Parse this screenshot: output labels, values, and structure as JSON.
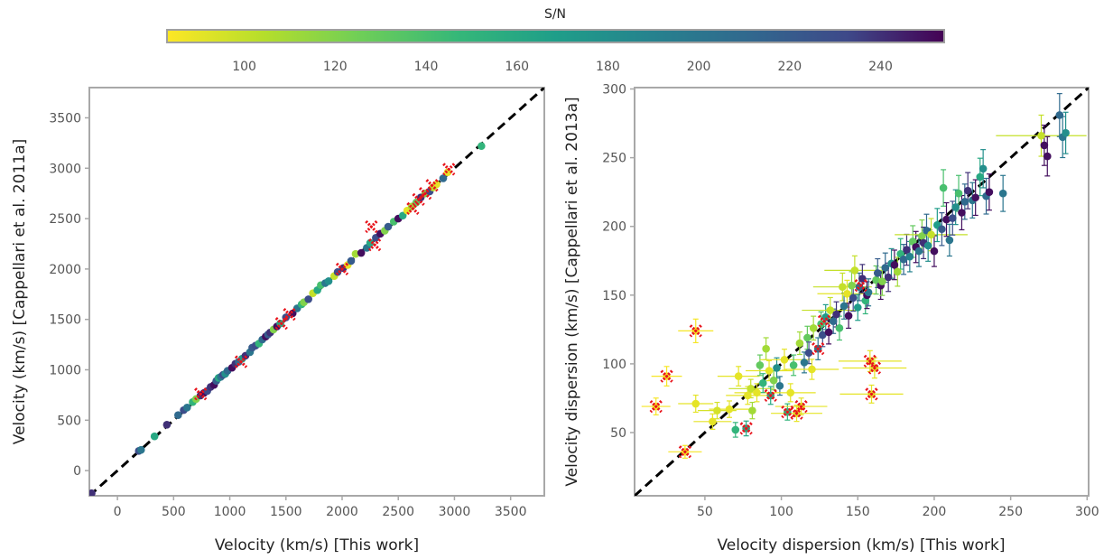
{
  "colorbar": {
    "label": "S/N",
    "ticks": [
      100,
      120,
      140,
      160,
      180,
      200,
      220,
      240
    ],
    "range": [
      83,
      254
    ]
  },
  "chart_data": [
    {
      "type": "scatter",
      "xlabel": "Velocity (km/s) [This work]",
      "ylabel": "Velocity (km/s) [Cappellari et al. 2011a]",
      "xlim": [
        -250,
        3800
      ],
      "ylim": [
        -250,
        3800
      ],
      "xticks": [
        0,
        500,
        1000,
        1500,
        2000,
        2500,
        3000,
        3500
      ],
      "yticks": [
        0,
        500,
        1000,
        1500,
        2000,
        2500,
        3000,
        3500
      ],
      "reference_line": "one-to-one",
      "points": [
        [
          -230,
          -225,
          240
        ],
        [
          190,
          195,
          230
        ],
        [
          210,
          205,
          200
        ],
        [
          330,
          340,
          160
        ],
        [
          440,
          455,
          240
        ],
        [
          540,
          550,
          210
        ],
        [
          590,
          600,
          230
        ],
        [
          620,
          625,
          200
        ],
        [
          670,
          680,
          150
        ],
        [
          700,
          710,
          120
        ],
        [
          740,
          745,
          240
        ],
        [
          770,
          770,
          250
        ],
        [
          800,
          790,
          230
        ],
        [
          830,
          830,
          240
        ],
        [
          860,
          850,
          250
        ],
        [
          880,
          890,
          220
        ],
        [
          900,
          920,
          160
        ],
        [
          920,
          930,
          200
        ],
        [
          940,
          950,
          230
        ],
        [
          960,
          960,
          180
        ],
        [
          980,
          990,
          210
        ],
        [
          1020,
          1020,
          250
        ],
        [
          1050,
          1060,
          240
        ],
        [
          1080,
          1080,
          210
        ],
        [
          1110,
          1110,
          170
        ],
        [
          1140,
          1140,
          240
        ],
        [
          1180,
          1175,
          200
        ],
        [
          1200,
          1220,
          220
        ],
        [
          1230,
          1240,
          230
        ],
        [
          1260,
          1260,
          150
        ],
        [
          1290,
          1300,
          210
        ],
        [
          1320,
          1330,
          250
        ],
        [
          1340,
          1350,
          220
        ],
        [
          1360,
          1370,
          240
        ],
        [
          1390,
          1400,
          120
        ],
        [
          1420,
          1430,
          250
        ],
        [
          1450,
          1460,
          160
        ],
        [
          1500,
          1520,
          230
        ],
        [
          1560,
          1560,
          250
        ],
        [
          1600,
          1610,
          200
        ],
        [
          1640,
          1650,
          150
        ],
        [
          1660,
          1670,
          120
        ],
        [
          1700,
          1700,
          230
        ],
        [
          1740,
          1760,
          100
        ],
        [
          1780,
          1790,
          160
        ],
        [
          1810,
          1840,
          140
        ],
        [
          1850,
          1860,
          200
        ],
        [
          1880,
          1880,
          180
        ],
        [
          1930,
          1930,
          100
        ],
        [
          1960,
          1970,
          230
        ],
        [
          2010,
          2010,
          240
        ],
        [
          2050,
          2040,
          90
        ],
        [
          2080,
          2080,
          220
        ],
        [
          2120,
          2150,
          110
        ],
        [
          2170,
          2160,
          250
        ],
        [
          2220,
          2210,
          200
        ],
        [
          2250,
          2260,
          160
        ],
        [
          2300,
          2310,
          230
        ],
        [
          2340,
          2350,
          250
        ],
        [
          2380,
          2380,
          120
        ],
        [
          2410,
          2420,
          220
        ],
        [
          2460,
          2470,
          140
        ],
        [
          2500,
          2500,
          250
        ],
        [
          2540,
          2530,
          160
        ],
        [
          2580,
          2580,
          90
        ],
        [
          2620,
          2620,
          110
        ],
        [
          2660,
          2660,
          130
        ],
        [
          2700,
          2710,
          240
        ],
        [
          2740,
          2750,
          120
        ],
        [
          2780,
          2770,
          230
        ],
        [
          2810,
          2810,
          100
        ],
        [
          2840,
          2840,
          90
        ],
        [
          2900,
          2900,
          210
        ],
        [
          2940,
          2960,
          90
        ],
        [
          3240,
          3220,
          150
        ]
      ],
      "flagged": [
        [
          740,
          760
        ],
        [
          1100,
          1080
        ],
        [
          1460,
          1460
        ],
        [
          1530,
          1550
        ],
        [
          2000,
          2000
        ],
        [
          2260,
          2420
        ],
        [
          2290,
          2240
        ],
        [
          2630,
          2600
        ],
        [
          2680,
          2690
        ],
        [
          2740,
          2750
        ],
        [
          2800,
          2830
        ],
        [
          2950,
          2990
        ]
      ]
    },
    {
      "type": "scatter",
      "xlabel": "Velocity dispersion (km/s) [This work]",
      "ylabel": "Velocity dispersion (km/s) [Cappellari et al. 2013a]",
      "xlim": [
        4,
        301
      ],
      "ylim": [
        4,
        301
      ],
      "xticks": [
        50,
        100,
        150,
        200,
        250,
        300
      ],
      "yticks": [
        50,
        100,
        150,
        200,
        250,
        300
      ],
      "reference_line": "one-to-one",
      "points": [
        [
          44,
          124,
          85
        ],
        [
          25,
          91,
          85
        ],
        [
          18,
          69,
          85
        ],
        [
          37,
          36,
          85
        ],
        [
          44,
          71,
          90
        ],
        [
          55,
          58,
          90
        ],
        [
          58,
          66,
          95
        ],
        [
          70,
          52,
          150
        ],
        [
          66,
          67,
          90
        ],
        [
          72,
          91,
          90
        ],
        [
          77,
          53,
          160
        ],
        [
          78,
          77,
          90
        ],
        [
          80,
          82,
          100
        ],
        [
          81,
          66,
          110
        ],
        [
          84,
          79,
          90
        ],
        [
          86,
          99,
          130
        ],
        [
          88,
          86,
          150
        ],
        [
          90,
          111,
          110
        ],
        [
          92,
          95,
          90
        ],
        [
          93,
          77,
          160
        ],
        [
          95,
          88,
          120
        ],
        [
          97,
          97,
          180
        ],
        [
          99,
          84,
          200
        ],
        [
          102,
          103,
          90
        ],
        [
          104,
          65,
          150
        ],
        [
          106,
          79,
          90
        ],
        [
          108,
          99,
          140
        ],
        [
          110,
          64,
          90
        ],
        [
          112,
          115,
          110
        ],
        [
          113,
          69,
          90
        ],
        [
          115,
          101,
          200
        ],
        [
          117,
          119,
          130
        ],
        [
          118,
          108,
          230
        ],
        [
          120,
          96,
          90
        ],
        [
          121,
          126,
          110
        ],
        [
          124,
          111,
          200
        ],
        [
          126,
          129,
          140
        ],
        [
          127,
          121,
          230
        ],
        [
          129,
          134,
          170
        ],
        [
          131,
          123,
          250
        ],
        [
          132,
          139,
          100
        ],
        [
          134,
          131,
          210
        ],
        [
          136,
          136,
          240
        ],
        [
          138,
          126,
          140
        ],
        [
          140,
          156,
          100
        ],
        [
          141,
          142,
          200
        ],
        [
          143,
          151,
          90
        ],
        [
          144,
          135,
          250
        ],
        [
          146,
          157,
          120
        ],
        [
          147,
          148,
          230
        ],
        [
          148,
          168,
          100
        ],
        [
          150,
          141,
          170
        ],
        [
          151,
          156,
          210
        ],
        [
          153,
          162,
          240
        ],
        [
          155,
          146,
          150
        ],
        [
          156,
          150,
          250
        ],
        [
          157,
          152,
          200
        ],
        [
          158,
          102,
          90
        ],
        [
          159,
          78,
          90
        ],
        [
          161,
          97,
          90
        ],
        [
          162,
          161,
          130
        ],
        [
          163,
          166,
          220
        ],
        [
          165,
          157,
          250
        ],
        [
          166,
          160,
          120
        ],
        [
          168,
          170,
          210
        ],
        [
          170,
          163,
          240
        ],
        [
          172,
          173,
          180
        ],
        [
          174,
          172,
          250
        ],
        [
          176,
          167,
          110
        ],
        [
          178,
          180,
          150
        ],
        [
          180,
          176,
          210
        ],
        [
          182,
          183,
          240
        ],
        [
          184,
          178,
          190
        ],
        [
          186,
          189,
          130
        ],
        [
          188,
          185,
          250
        ],
        [
          190,
          182,
          200
        ],
        [
          192,
          193,
          120
        ],
        [
          193,
          188,
          240
        ],
        [
          195,
          197,
          210
        ],
        [
          196,
          186,
          180
        ],
        [
          198,
          194,
          100
        ],
        [
          200,
          182,
          250
        ],
        [
          202,
          201,
          170
        ],
        [
          205,
          198,
          220
        ],
        [
          206,
          228,
          140
        ],
        [
          208,
          205,
          250
        ],
        [
          210,
          190,
          200
        ],
        [
          212,
          206,
          230
        ],
        [
          214,
          214,
          180
        ],
        [
          216,
          224,
          140
        ],
        [
          218,
          210,
          250
        ],
        [
          220,
          218,
          210
        ],
        [
          222,
          226,
          240
        ],
        [
          225,
          219,
          200
        ],
        [
          227,
          221,
          250
        ],
        [
          230,
          236,
          160
        ],
        [
          232,
          242,
          180
        ],
        [
          234,
          222,
          210
        ],
        [
          236,
          225,
          250
        ],
        [
          245,
          224,
          200
        ],
        [
          270,
          266,
          100
        ],
        [
          272,
          259,
          250
        ],
        [
          274,
          251,
          250
        ],
        [
          282,
          281,
          210
        ],
        [
          284,
          265,
          200
        ],
        [
          286,
          268,
          180
        ]
      ],
      "flagged": [
        [
          44,
          124
        ],
        [
          25,
          91
        ],
        [
          18,
          69
        ],
        [
          37,
          36
        ],
        [
          77,
          53
        ],
        [
          93,
          77
        ],
        [
          104,
          65
        ],
        [
          110,
          64
        ],
        [
          113,
          69
        ],
        [
          158,
          102
        ],
        [
          159,
          78
        ],
        [
          161,
          97
        ],
        [
          124,
          111
        ],
        [
          128,
          131
        ],
        [
          152,
          157
        ]
      ]
    }
  ]
}
